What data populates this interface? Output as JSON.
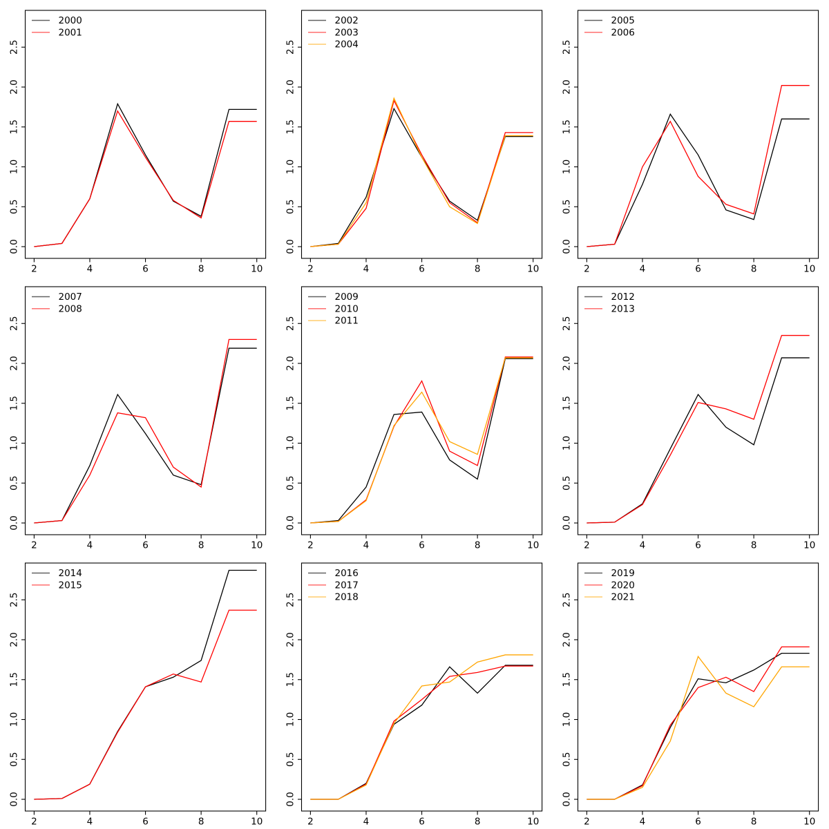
{
  "figure": {
    "background": "#ffffff",
    "text_color": "#000000",
    "palette": {
      "black": "#000000",
      "red": "#ff0000",
      "orange": "#ffa500"
    },
    "axis": {
      "x_tick_labels": [
        "2",
        "4",
        "6",
        "8",
        "10"
      ],
      "x_tick_values": [
        2,
        4,
        6,
        8,
        10
      ],
      "y_tick_labels": [
        "0.0",
        "0.5",
        "1.0",
        "1.5",
        "2.0",
        "2.5"
      ],
      "y_tick_values": [
        0.0,
        0.5,
        1.0,
        1.5,
        2.0,
        2.5
      ],
      "xlim": [
        1.68,
        10.32
      ],
      "ylim": [
        -0.147,
        2.961
      ],
      "grid": false,
      "y_label_rotation": -90
    },
    "legend_position": "top-left",
    "legend_frame": false
  },
  "chart_data": [
    {
      "type": "line",
      "title": "",
      "xlabel": "",
      "ylabel": "",
      "x": [
        2,
        3,
        4,
        5,
        6,
        7,
        8,
        9,
        10
      ],
      "series": [
        {
          "name": "2000",
          "color": "#000000",
          "values": [
            0.0,
            0.04,
            0.6,
            1.79,
            1.15,
            0.57,
            0.38,
            1.72,
            1.72
          ]
        },
        {
          "name": "2001",
          "color": "#ff0000",
          "values": [
            0.0,
            0.04,
            0.6,
            1.7,
            1.12,
            0.58,
            0.36,
            1.57,
            1.57
          ]
        }
      ]
    },
    {
      "type": "line",
      "title": "",
      "xlabel": "",
      "ylabel": "",
      "x": [
        2,
        3,
        4,
        5,
        6,
        7,
        8,
        9,
        10
      ],
      "series": [
        {
          "name": "2002",
          "color": "#000000",
          "values": [
            0.0,
            0.04,
            0.62,
            1.73,
            1.12,
            0.57,
            0.33,
            1.38,
            1.38
          ]
        },
        {
          "name": "2003",
          "color": "#ff0000",
          "values": [
            0.0,
            0.03,
            0.48,
            1.83,
            1.15,
            0.55,
            0.3,
            1.43,
            1.43
          ]
        },
        {
          "name": "2004",
          "color": "#ffa500",
          "values": [
            0.0,
            0.03,
            0.55,
            1.86,
            1.12,
            0.5,
            0.29,
            1.39,
            1.39
          ]
        }
      ]
    },
    {
      "type": "line",
      "title": "",
      "xlabel": "",
      "ylabel": "",
      "x": [
        2,
        3,
        4,
        5,
        6,
        7,
        8,
        9,
        10
      ],
      "series": [
        {
          "name": "2005",
          "color": "#000000",
          "values": [
            0.0,
            0.03,
            0.78,
            1.66,
            1.15,
            0.46,
            0.34,
            1.6,
            1.6
          ]
        },
        {
          "name": "2006",
          "color": "#ff0000",
          "values": [
            0.0,
            0.03,
            1.0,
            1.57,
            0.88,
            0.53,
            0.41,
            2.02,
            2.02
          ]
        }
      ]
    },
    {
      "type": "line",
      "title": "",
      "xlabel": "",
      "ylabel": "",
      "x": [
        2,
        3,
        4,
        5,
        6,
        7,
        8,
        9,
        10
      ],
      "series": [
        {
          "name": "2007",
          "color": "#000000",
          "values": [
            0.0,
            0.03,
            0.72,
            1.61,
            1.12,
            0.6,
            0.48,
            2.19,
            2.19
          ]
        },
        {
          "name": "2008",
          "color": "#ff0000",
          "values": [
            0.0,
            0.03,
            0.6,
            1.38,
            1.32,
            0.7,
            0.45,
            2.3,
            2.3
          ]
        }
      ]
    },
    {
      "type": "line",
      "title": "",
      "xlabel": "",
      "ylabel": "",
      "x": [
        2,
        3,
        4,
        5,
        6,
        7,
        8,
        9,
        10
      ],
      "series": [
        {
          "name": "2009",
          "color": "#000000",
          "values": [
            0.0,
            0.03,
            0.45,
            1.36,
            1.39,
            0.79,
            0.55,
            2.06,
            2.06
          ]
        },
        {
          "name": "2010",
          "color": "#ff0000",
          "values": [
            0.0,
            0.02,
            0.29,
            1.21,
            1.78,
            0.9,
            0.72,
            2.08,
            2.08
          ]
        },
        {
          "name": "2011",
          "color": "#ffa500",
          "values": [
            0.0,
            0.02,
            0.28,
            1.22,
            1.64,
            1.02,
            0.86,
            2.07,
            2.07
          ]
        }
      ]
    },
    {
      "type": "line",
      "title": "",
      "xlabel": "",
      "ylabel": "",
      "x": [
        2,
        3,
        4,
        5,
        6,
        7,
        8,
        9,
        10
      ],
      "series": [
        {
          "name": "2012",
          "color": "#000000",
          "values": [
            0.0,
            0.01,
            0.24,
            0.93,
            1.61,
            1.2,
            0.98,
            2.07,
            2.07
          ]
        },
        {
          "name": "2013",
          "color": "#ff0000",
          "values": [
            0.0,
            0.01,
            0.23,
            0.85,
            1.51,
            1.43,
            1.3,
            2.35,
            2.35
          ]
        }
      ]
    },
    {
      "type": "line",
      "title": "",
      "xlabel": "",
      "ylabel": "",
      "x": [
        2,
        3,
        4,
        5,
        6,
        7,
        8,
        9,
        10
      ],
      "series": [
        {
          "name": "2014",
          "color": "#000000",
          "values": [
            0.0,
            0.01,
            0.19,
            0.85,
            1.41,
            1.53,
            1.74,
            2.87,
            2.87
          ]
        },
        {
          "name": "2015",
          "color": "#ff0000",
          "values": [
            0.0,
            0.01,
            0.19,
            0.84,
            1.41,
            1.57,
            1.47,
            2.37,
            2.37
          ]
        }
      ]
    },
    {
      "type": "line",
      "title": "",
      "xlabel": "",
      "ylabel": "",
      "x": [
        2,
        3,
        4,
        5,
        6,
        7,
        8,
        9,
        10
      ],
      "series": [
        {
          "name": "2016",
          "color": "#000000",
          "values": [
            0.0,
            0.0,
            0.2,
            0.94,
            1.18,
            1.66,
            1.33,
            1.68,
            1.68
          ]
        },
        {
          "name": "2017",
          "color": "#ff0000",
          "values": [
            0.0,
            0.0,
            0.19,
            0.98,
            1.25,
            1.54,
            1.59,
            1.67,
            1.67
          ]
        },
        {
          "name": "2018",
          "color": "#ffa500",
          "values": [
            0.0,
            0.0,
            0.18,
            0.95,
            1.42,
            1.47,
            1.72,
            1.81,
            1.81
          ]
        }
      ]
    },
    {
      "type": "line",
      "title": "",
      "xlabel": "",
      "ylabel": "",
      "x": [
        2,
        3,
        4,
        5,
        6,
        7,
        8,
        9,
        10
      ],
      "series": [
        {
          "name": "2019",
          "color": "#000000",
          "values": [
            0.0,
            0.0,
            0.18,
            0.9,
            1.51,
            1.46,
            1.62,
            1.83,
            1.83
          ]
        },
        {
          "name": "2020",
          "color": "#ff0000",
          "values": [
            0.0,
            0.0,
            0.17,
            0.93,
            1.4,
            1.53,
            1.35,
            1.91,
            1.91
          ]
        },
        {
          "name": "2021",
          "color": "#ffa500",
          "values": [
            0.0,
            0.0,
            0.15,
            0.73,
            1.79,
            1.33,
            1.16,
            1.66,
            1.66
          ]
        }
      ]
    }
  ]
}
